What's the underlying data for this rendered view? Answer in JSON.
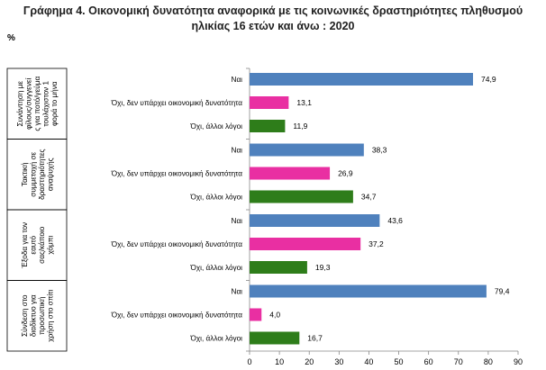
{
  "title_line1": "Γράφημα 4. Οικονομική δυνατότητα αναφορικά με τις κοινωνικές δραστηριότητες πληθυσμού",
  "title_line2": "ηλικίας 16 ετών και άνω : 2020",
  "unit_label": "%",
  "colors": {
    "yes": "#4f81bd",
    "no_money": "#e92fa2",
    "other": "#2e7d1a",
    "axis": "#888888"
  },
  "chart_data": {
    "type": "bar",
    "orientation": "horizontal",
    "xlim": [
      0,
      90
    ],
    "x_ticks": [
      0,
      10,
      20,
      30,
      40,
      50,
      60,
      70,
      80,
      90
    ],
    "groups": [
      {
        "label_lines": [
          "Συνάντηση με",
          "φίλους/συγγενεί",
          "ς για ποτό/γεύμα",
          "τουλάχιστον 1",
          "φορά το μήνα"
        ],
        "bars": [
          {
            "label": "Ναι",
            "value": 74.9,
            "value_label": "74,9",
            "color_key": "yes"
          },
          {
            "label": "Όχι, δεν υπάρχει οικονομική δυνατότητα",
            "value": 13.1,
            "value_label": "13,1",
            "color_key": "no_money"
          },
          {
            "label": "Όχι, άλλοι λόγοι",
            "value": 11.9,
            "value_label": "11,9",
            "color_key": "other"
          }
        ]
      },
      {
        "label_lines": [
          "Τακτική",
          "συμμετοχή σε",
          "δραστηριότητες",
          "αναψυχής"
        ],
        "bars": [
          {
            "label": "Ναι",
            "value": 38.3,
            "value_label": "38,3",
            "color_key": "yes"
          },
          {
            "label": "Όχι, δεν υπάρχει οικονομική δυνατότητα",
            "value": 26.9,
            "value_label": "26,9",
            "color_key": "no_money"
          },
          {
            "label": "Όχι, άλλοι λόγοι",
            "value": 34.7,
            "value_label": "34,7",
            "color_key": "other"
          }
        ]
      },
      {
        "label_lines": [
          "Έξοδα για τον",
          "εαυτό",
          "σας/κάποιο",
          "χόμπι"
        ],
        "bars": [
          {
            "label": "Ναι",
            "value": 43.6,
            "value_label": "43,6",
            "color_key": "yes"
          },
          {
            "label": "Όχι, δεν υπάρχει οικονομική δυνατότητα",
            "value": 37.2,
            "value_label": "37,2",
            "color_key": "no_money"
          },
          {
            "label": "Όχι, άλλοι λόγοι",
            "value": 19.3,
            "value_label": "19,3",
            "color_key": "other"
          }
        ]
      },
      {
        "label_lines": [
          "Σύνδεση στο",
          "διαδίκτυο για",
          "προσωπική",
          "χρήση στο σπίτι"
        ],
        "bars": [
          {
            "label": "Ναι",
            "value": 79.4,
            "value_label": "79,4",
            "color_key": "yes"
          },
          {
            "label": "Όχι, δεν υπάρχει οικονομική δυνατότητα",
            "value": 4.0,
            "value_label": "4,0",
            "color_key": "no_money"
          },
          {
            "label": "Όχι, άλλοι λόγοι",
            "value": 16.7,
            "value_label": "16,7",
            "color_key": "other"
          }
        ]
      }
    ]
  }
}
